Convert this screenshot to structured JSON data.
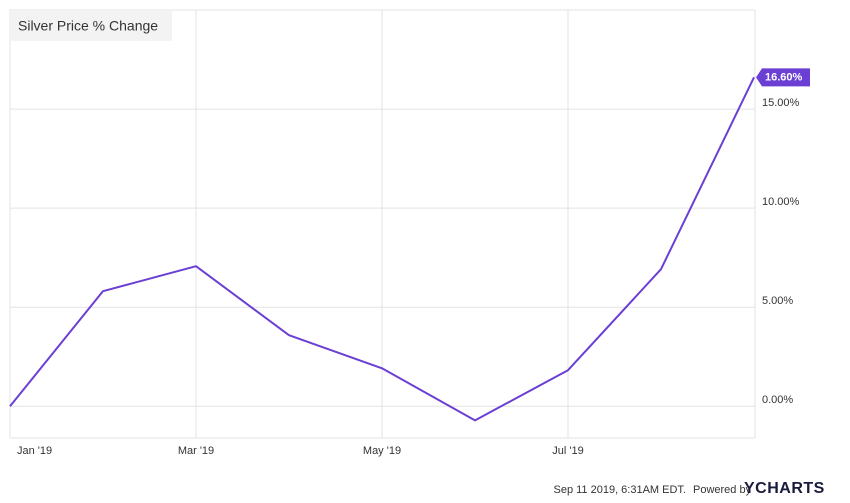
{
  "chart_data": {
    "type": "line",
    "title": "Silver Price % Change",
    "categories": [
      "Jan '19",
      null,
      "Mar '19",
      null,
      "May '19",
      null,
      "Jul '19",
      null,
      null
    ],
    "values": [
      0,
      5.81,
      7.07,
      3.59,
      1.92,
      -0.71,
      1.82,
      6.92,
      16.6
    ],
    "value_labels": [
      null,
      null,
      null,
      null,
      null,
      null,
      null,
      null,
      "16.60%"
    ],
    "color": "#6b3fd4",
    "ylim": [
      -1.6,
      20
    ],
    "yticks": [
      {
        "value": 0,
        "label": "0.00%"
      },
      {
        "value": 5,
        "label": "5.00%"
      },
      {
        "value": 10,
        "label": "10.00%"
      },
      {
        "value": 15,
        "label": "15.00%"
      }
    ],
    "grid": true
  },
  "footer": {
    "timestamp": "Sep 11 2019, 6:31AM EDT.",
    "powered": "Powered by",
    "brand": "YCHARTS"
  }
}
